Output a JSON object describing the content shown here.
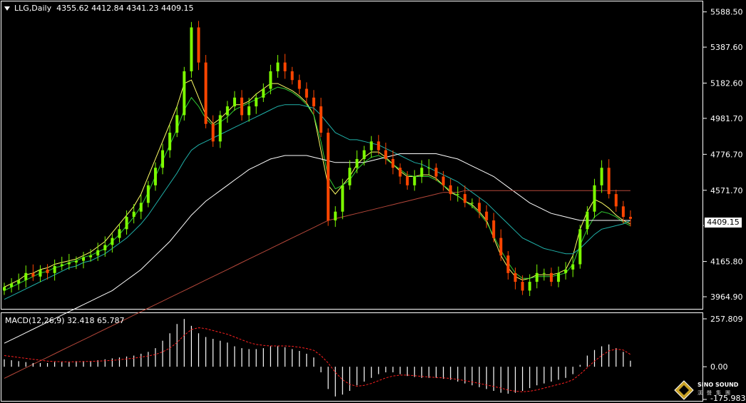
{
  "header": {
    "title": "LLG,Daily  4355.62 4412.84 4341.23 4409.15"
  },
  "macd": {
    "title": "MACD(12,26,9) 32.418 65.787",
    "axis_ticks": [
      "257.809",
      "0.00",
      "-175.983"
    ]
  },
  "price_axis": {
    "ticks": [
      "5588.50",
      "5387.60",
      "5182.60",
      "4981.70",
      "4776.70",
      "4571.70",
      "4370.80",
      "4165.80",
      "3964.90"
    ],
    "current_price": "4409.15"
  },
  "logo": {
    "name": "SINO SOUND",
    "sub": "漢聲集團"
  },
  "colors": {
    "background": "#000000",
    "up_candle": "#7cfc00",
    "down_candle": "#ff4500",
    "ma_yellow": "#ffff66",
    "ma_green": "#32cd32",
    "ma_cyan": "#20b2aa",
    "ma_white": "#ffffff",
    "ma_brown": "#b5473a",
    "macd_hist": "#ffffff",
    "macd_signal": "#ff2020"
  },
  "chart_data": [
    {
      "type": "candlestick",
      "title": "LLG,Daily",
      "ohlc_last": {
        "open": 4355.62,
        "high": 4412.84,
        "low": 4341.23,
        "close": 4409.15
      },
      "ylim": [
        3900,
        5640
      ],
      "y_ticks": [
        5588.5,
        5387.6,
        5182.6,
        4981.7,
        4776.7,
        4571.7,
        4370.8,
        4165.8,
        3964.9
      ],
      "closes": [
        4020,
        4040,
        4060,
        4100,
        4080,
        4120,
        4100,
        4140,
        4150,
        4160,
        4170,
        4190,
        4200,
        4230,
        4260,
        4300,
        4350,
        4420,
        4450,
        4500,
        4600,
        4700,
        4800,
        4900,
        5000,
        5250,
        5500,
        5300,
        4950,
        4850,
        5000,
        5050,
        5100,
        5000,
        5050,
        5100,
        5150,
        5250,
        5300,
        5250,
        5200,
        5150,
        5100,
        5050,
        4900,
        4400,
        4450,
        4600,
        4700,
        4750,
        4800,
        4850,
        4800,
        4750,
        4700,
        4650,
        4600,
        4650,
        4700,
        4700,
        4650,
        4600,
        4550,
        4550,
        4500,
        4500,
        4450,
        4400,
        4300,
        4200,
        4100,
        4050,
        4000,
        4050,
        4100,
        4100,
        4050,
        4100,
        4120,
        4150,
        4350,
        4450,
        4600,
        4700,
        4550,
        4480,
        4420,
        4409.15
      ],
      "moving_averages": [
        {
          "color": "#ffff66",
          "values": [
            4020,
            4040,
            4060,
            4090,
            4100,
            4120,
            4130,
            4150,
            4160,
            4170,
            4180,
            4200,
            4220,
            4250,
            4280,
            4330,
            4380,
            4430,
            4480,
            4550,
            4650,
            4750,
            4850,
            4950,
            5050,
            5180,
            5200,
            5100,
            5000,
            4950,
            4980,
            5020,
            5060,
            5060,
            5080,
            5120,
            5150,
            5180,
            5180,
            5160,
            5140,
            5110,
            5070,
            5000,
            4800,
            4600,
            4550,
            4600,
            4650,
            4720,
            4760,
            4790,
            4790,
            4760,
            4720,
            4680,
            4650,
            4650,
            4660,
            4660,
            4640,
            4600,
            4560,
            4540,
            4510,
            4490,
            4450,
            4400,
            4300,
            4200,
            4130,
            4080,
            4060,
            4070,
            4090,
            4090,
            4090,
            4100,
            4120,
            4200,
            4350,
            4450,
            4520,
            4500,
            4470,
            4430,
            4400,
            4380
          ]
        },
        {
          "color": "#32cd32",
          "values": [
            4000,
            4020,
            4040,
            4060,
            4080,
            4100,
            4110,
            4130,
            4140,
            4160,
            4170,
            4190,
            4200,
            4220,
            4240,
            4280,
            4320,
            4370,
            4420,
            4480,
            4560,
            4650,
            4740,
            4830,
            4920,
            5030,
            5100,
            5050,
            4980,
            4940,
            4960,
            4990,
            5030,
            5050,
            5070,
            5090,
            5110,
            5140,
            5160,
            5150,
            5130,
            5100,
            5060,
            5000,
            4850,
            4650,
            4580,
            4600,
            4630,
            4690,
            4730,
            4760,
            4770,
            4750,
            4720,
            4690,
            4660,
            4650,
            4650,
            4650,
            4630,
            4600,
            4570,
            4540,
            4510,
            4480,
            4440,
            4390,
            4310,
            4230,
            4160,
            4100,
            4070,
            4070,
            4080,
            4080,
            4080,
            4090,
            4100,
            4150,
            4260,
            4350,
            4420,
            4450,
            4440,
            4420,
            4390,
            4370
          ]
        },
        {
          "color": "#20b2aa",
          "values": [
            3950,
            3970,
            3990,
            4010,
            4030,
            4050,
            4070,
            4090,
            4110,
            4130,
            4140,
            4160,
            4170,
            4190,
            4210,
            4240,
            4270,
            4300,
            4340,
            4380,
            4430,
            4490,
            4550,
            4610,
            4670,
            4740,
            4800,
            4830,
            4850,
            4870,
            4890,
            4910,
            4930,
            4950,
            4970,
            4990,
            5010,
            5030,
            5050,
            5060,
            5060,
            5060,
            5050,
            5040,
            5000,
            4950,
            4900,
            4880,
            4860,
            4860,
            4850,
            4840,
            4830,
            4810,
            4790,
            4770,
            4750,
            4730,
            4720,
            4700,
            4680,
            4660,
            4640,
            4620,
            4590,
            4560,
            4530,
            4500,
            4460,
            4420,
            4380,
            4340,
            4300,
            4280,
            4260,
            4240,
            4230,
            4220,
            4210,
            4210,
            4240,
            4280,
            4320,
            4350,
            4360,
            4370,
            4380,
            4400
          ]
        },
        {
          "color": "#ffffff",
          "values": [
            3700,
            3720,
            3740,
            3760,
            3780,
            3800,
            3820,
            3840,
            3860,
            3880,
            3900,
            3920,
            3940,
            3960,
            3980,
            4000,
            4030,
            4060,
            4090,
            4120,
            4160,
            4200,
            4240,
            4280,
            4330,
            4380,
            4430,
            4470,
            4510,
            4540,
            4570,
            4600,
            4630,
            4660,
            4690,
            4710,
            4730,
            4750,
            4760,
            4770,
            4770,
            4770,
            4770,
            4760,
            4750,
            4740,
            4730,
            4730,
            4730,
            4730,
            4730,
            4740,
            4750,
            4760,
            4770,
            4780,
            4780,
            4780,
            4780,
            4780,
            4780,
            4770,
            4760,
            4750,
            4730,
            4710,
            4690,
            4670,
            4650,
            4620,
            4590,
            4560,
            4530,
            4500,
            4480,
            4460,
            4440,
            4430,
            4420,
            4410,
            4400,
            4400,
            4400,
            4400,
            4400,
            4400,
            4400,
            4400
          ]
        },
        {
          "color": "#b5473a",
          "values": [
            3500,
            3520,
            3540,
            3560,
            3580,
            3600,
            3620,
            3640,
            3660,
            3680,
            3700,
            3720,
            3740,
            3760,
            3780,
            3800,
            3820,
            3840,
            3860,
            3880,
            3900,
            3920,
            3940,
            3960,
            3980,
            4000,
            4020,
            4040,
            4060,
            4080,
            4100,
            4120,
            4140,
            4160,
            4180,
            4200,
            4220,
            4240,
            4260,
            4280,
            4300,
            4320,
            4340,
            4360,
            4380,
            4400,
            4410,
            4420,
            4430,
            4440,
            4450,
            4460,
            4470,
            4480,
            4490,
            4500,
            4510,
            4520,
            4530,
            4540,
            4550,
            4560,
            4560,
            4560,
            4570,
            4570,
            4570,
            4570,
            4570,
            4570,
            4570,
            4570,
            4570,
            4570,
            4570,
            4570,
            4570,
            4570,
            4570,
            4570,
            4570,
            4570,
            4570,
            4570,
            4570,
            4570,
            4570,
            4570
          ]
        }
      ]
    },
    {
      "type": "macd",
      "title": "MACD(12,26,9)",
      "params": [
        12,
        26,
        9
      ],
      "last_values": {
        "macd": 32.418,
        "signal": 65.787
      },
      "ylim": [
        -175.983,
        257.809
      ],
      "histogram": [
        40,
        35,
        30,
        25,
        20,
        20,
        20,
        25,
        25,
        25,
        30,
        30,
        30,
        35,
        40,
        45,
        50,
        55,
        60,
        70,
        80,
        100,
        140,
        180,
        230,
        257,
        220,
        180,
        160,
        150,
        140,
        130,
        110,
        100,
        95,
        95,
        100,
        110,
        110,
        105,
        95,
        85,
        70,
        50,
        -30,
        -120,
        -160,
        -150,
        -130,
        -100,
        -80,
        -60,
        -40,
        -30,
        -30,
        -40,
        -50,
        -55,
        -60,
        -60,
        -60,
        -65,
        -70,
        -80,
        -90,
        -100,
        -110,
        -120,
        -130,
        -140,
        -145,
        -140,
        -130,
        -115,
        -100,
        -90,
        -80,
        -70,
        -60,
        -40,
        10,
        60,
        90,
        110,
        120,
        100,
        80,
        32.418
      ],
      "signal": [
        60,
        55,
        50,
        45,
        40,
        35,
        30,
        28,
        27,
        26,
        27,
        28,
        29,
        30,
        32,
        34,
        38,
        42,
        46,
        52,
        58,
        66,
        80,
        100,
        130,
        170,
        200,
        210,
        205,
        195,
        185,
        175,
        160,
        145,
        130,
        120,
        115,
        112,
        112,
        112,
        110,
        105,
        98,
        88,
        60,
        20,
        -30,
        -70,
        -95,
        -105,
        -100,
        -90,
        -75,
        -60,
        -50,
        -45,
        -45,
        -48,
        -52,
        -55,
        -58,
        -60,
        -63,
        -68,
        -75,
        -82,
        -90,
        -98,
        -106,
        -115,
        -125,
        -132,
        -135,
        -132,
        -125,
        -115,
        -105,
        -95,
        -85,
        -70,
        -40,
        -5,
        30,
        60,
        85,
        95,
        90,
        65.787
      ]
    }
  ]
}
